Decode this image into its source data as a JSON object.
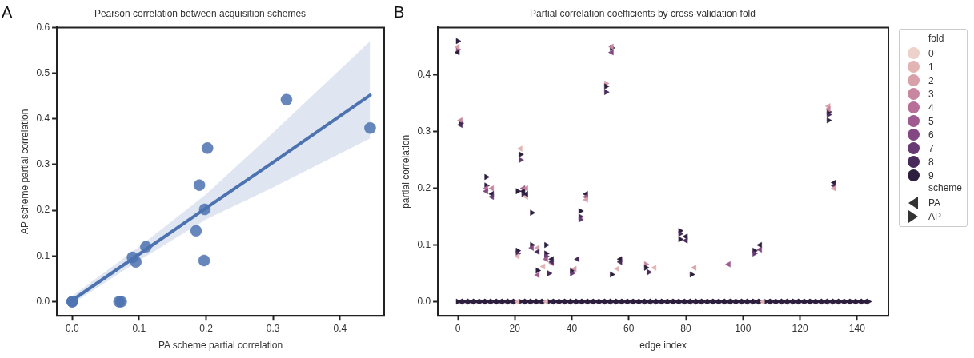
{
  "chart_data": [
    {
      "type": "scatter",
      "title": "Pearson correlation between acquisition schemes",
      "xlabel": "PA scheme partial correlation",
      "ylabel": "AP scheme partial correlation",
      "annotations": [
        "A"
      ],
      "grid": false,
      "legend": false,
      "xlim": [
        -0.023,
        0.466
      ],
      "ylim": [
        -0.031,
        0.6
      ],
      "xticks": [
        {
          "value": 0,
          "label": "0.0"
        },
        0.1,
        0.2,
        0.3,
        0.4
      ],
      "yticks": [
        {
          "value": 0,
          "label": "0.0"
        },
        0.1,
        0.2,
        0.3,
        0.4,
        0.5,
        0.6
      ],
      "series": [
        {
          "marker": "circle",
          "color": "#4c72b0",
          "x": [
            0,
            0,
            0.07,
            0.073,
            0.09,
            0.095,
            0.11,
            0.185,
            0.19,
            0.197,
            0.198,
            0.202,
            0.32,
            0.445
          ],
          "values": [
            0,
            0,
            0,
            0,
            0.097,
            0.087,
            0.12,
            0.155,
            0.255,
            0.09,
            0.202,
            0.336,
            0.442,
            0.38
          ]
        },
        {
          "type": "line",
          "marker": "none",
          "color": "#4c72b0",
          "x": [
            0,
            0.1,
            0.2,
            0.3,
            0.445
          ],
          "values": [
            0.003,
            0.104,
            0.205,
            0.305,
            0.452
          ],
          "lower": [
            -0.005,
            0.09,
            0.18,
            0.25,
            0.357
          ],
          "upper": [
            0.012,
            0.12,
            0.235,
            0.37,
            0.57
          ]
        }
      ]
    },
    {
      "type": "scatter",
      "title": "Partial correlation coefficients by cross-validation fold",
      "xlabel": "edge index",
      "ylabel": "partial correlation",
      "legend_title": "fold",
      "annotations": [
        "B",
        "scheme"
      ],
      "grid": false,
      "legend": "right",
      "marker": "triangle",
      "xlim": [
        -7,
        151
      ],
      "ylim": [
        -0.025,
        0.484
      ],
      "xticks": [
        0,
        20,
        40,
        60,
        80,
        100,
        120,
        140
      ],
      "yticks": [
        {
          "value": 0,
          "label": "0.0"
        },
        0.1,
        0.2,
        0.3,
        0.4
      ],
      "series": [
        {
          "name": "0",
          "color": "#edd1cb",
          "marker": "circle"
        },
        {
          "name": "1",
          "color": "#e3b4b4",
          "marker": "circle"
        },
        {
          "name": "2",
          "color": "#d8a0a8",
          "marker": "circle"
        },
        {
          "name": "3",
          "color": "#c9869f",
          "marker": "circle"
        },
        {
          "name": "4",
          "color": "#b76f98",
          "marker": "circle"
        },
        {
          "name": "5",
          "color": "#9f5a8f",
          "marker": "circle"
        },
        {
          "name": "6",
          "color": "#834883",
          "marker": "circle"
        },
        {
          "name": "7",
          "color": "#673a73",
          "marker": "circle"
        },
        {
          "name": "8",
          "color": "#492b5b",
          "marker": "circle"
        },
        {
          "name": "9",
          "color": "#2d1e3e",
          "marker": "circle"
        },
        {
          "name": "PA",
          "color": "#333333",
          "x": [
            0,
            0,
            1,
            1,
            10,
            10,
            12,
            12,
            12,
            21,
            22,
            23,
            23,
            24,
            24,
            24,
            26,
            28,
            28,
            28,
            30,
            31,
            33,
            33,
            33,
            41,
            42,
            45,
            45,
            45,
            54,
            54,
            56,
            57,
            57,
            69,
            80,
            80,
            83,
            95,
            106,
            106,
            130,
            130,
            132,
            132,
            132,
            1,
            3,
            5,
            7,
            9,
            11,
            13,
            15,
            17,
            19,
            21,
            23,
            25,
            27,
            29,
            31,
            33,
            35,
            37,
            39,
            41,
            43,
            45,
            47,
            49,
            51,
            53,
            55,
            57,
            59,
            61,
            63,
            65,
            67,
            69,
            71,
            73,
            75,
            77,
            79,
            81,
            83,
            85,
            87,
            89,
            91,
            93,
            95,
            97,
            99,
            101,
            103,
            105,
            107,
            109,
            111,
            113,
            115,
            117,
            119,
            121,
            123,
            125,
            127,
            129,
            131,
            133,
            135,
            137,
            139,
            141,
            143
          ],
          "values": [
            0.45,
            0.44,
            0.32,
            0.312,
            0.2,
            0.195,
            0.2,
            0.19,
            0.185,
            0.08,
            0.27,
            0.2,
            0.195,
            0.2,
            0.185,
            0.19,
            0.095,
            0.095,
            0.088,
            0.047,
            0.062,
            0.075,
            0.075,
            0.068,
            0.07,
            0.058,
            0.075,
            0.19,
            0.185,
            0.18,
            0.45,
            0.44,
            0.058,
            0.075,
            0.07,
            0.06,
            0.115,
            0.108,
            0.06,
            0.066,
            0.1,
            0.092,
            0.345,
            0.34,
            0.21,
            0.205,
            0.2,
            0,
            0,
            0,
            0,
            0,
            0,
            0,
            0,
            0,
            0,
            0,
            0,
            0,
            0,
            0,
            0,
            0,
            0,
            0,
            0,
            0,
            0,
            0,
            0,
            0,
            0,
            0,
            0,
            0,
            0,
            0,
            0,
            0,
            0,
            0,
            0,
            0,
            0,
            0,
            0,
            0,
            0,
            0,
            0,
            0,
            0,
            0,
            0,
            0,
            0,
            0,
            0,
            0,
            0,
            0,
            0,
            0,
            0,
            0,
            0,
            0,
            0,
            0,
            0,
            0,
            0,
            0,
            0,
            0,
            0,
            0,
            0
          ],
          "colors": [
            "#d8a0a8",
            "#2d1e3e",
            "#c9869f",
            "#492b5b",
            "#b76f98",
            "#834883",
            "#c9869f",
            "#2d1e3e",
            "#673a73",
            "#e3b4b4",
            "#e3b4b4",
            "#9f5a8f",
            "#2d1e3e",
            "#c9869f",
            "#e3b4b4",
            "#2d1e3e",
            "#834883",
            "#d8a0a8",
            "#492b5b",
            "#9f5a8f",
            "#e3b4b4",
            "#9f5a8f",
            "#2d1e3e",
            "#c9869f",
            "#492b5b",
            "#d8a0a8",
            "#492b5b",
            "#2d1e3e",
            "#9f5a8f",
            "#d8a0a8",
            "#c9869f",
            "#834883",
            "#e3b4b4",
            "#2d1e3e",
            "#492b5b",
            "#e3b4b4",
            "#2d1e3e",
            "#492b5b",
            "#d8a0a8",
            "#9f5a8f",
            "#2d1e3e",
            "#834883",
            "#d8a0a8",
            "#c9869f",
            "#2d1e3e",
            "#492b5b",
            "#d8a0a8",
            "#2d1e3e",
            "#2d1e3e",
            "#2d1e3e",
            "#2d1e3e",
            "#2d1e3e",
            "#2d1e3e",
            "#2d1e3e",
            "#2d1e3e",
            "#2d1e3e",
            "#2d1e3e",
            "#e3b4b4",
            "#2d1e3e",
            "#2d1e3e",
            "#2d1e3e",
            "#2d1e3e",
            "#e3b4b4",
            "#2d1e3e",
            "#2d1e3e",
            "#2d1e3e",
            "#2d1e3e",
            "#2d1e3e",
            "#2d1e3e",
            "#2d1e3e",
            "#2d1e3e",
            "#2d1e3e",
            "#2d1e3e",
            "#2d1e3e",
            "#2d1e3e",
            "#2d1e3e",
            "#2d1e3e",
            "#2d1e3e",
            "#2d1e3e",
            "#2d1e3e",
            "#2d1e3e",
            "#2d1e3e",
            "#2d1e3e",
            "#2d1e3e",
            "#2d1e3e",
            "#2d1e3e",
            "#2d1e3e",
            "#2d1e3e",
            "#2d1e3e",
            "#2d1e3e",
            "#2d1e3e",
            "#2d1e3e",
            "#2d1e3e",
            "#2d1e3e",
            "#2d1e3e",
            "#2d1e3e",
            "#2d1e3e",
            "#2d1e3e",
            "#2d1e3e",
            "#2d1e3e",
            "#e3b4b4",
            "#2d1e3e",
            "#2d1e3e",
            "#2d1e3e",
            "#2d1e3e",
            "#2d1e3e",
            "#2d1e3e",
            "#2d1e3e",
            "#2d1e3e",
            "#2d1e3e",
            "#2d1e3e",
            "#2d1e3e",
            "#2d1e3e",
            "#2d1e3e",
            "#2d1e3e",
            "#2d1e3e",
            "#2d1e3e",
            "#2d1e3e",
            "#2d1e3e"
          ]
        },
        {
          "name": "AP",
          "color": "#333333",
          "x": [
            0,
            0,
            1,
            10,
            10,
            21,
            21,
            21,
            22,
            22,
            23,
            26,
            26,
            28,
            31,
            31,
            31,
            32,
            40,
            40,
            43,
            43,
            43,
            52,
            52,
            52,
            54,
            54,
            66,
            66,
            67,
            78,
            78,
            78,
            82,
            104,
            104,
            130,
            130,
            130,
            0,
            2,
            4,
            6,
            8,
            10,
            12,
            14,
            16,
            18,
            20,
            22,
            24,
            26,
            28,
            30,
            32,
            34,
            36,
            38,
            40,
            42,
            44,
            46,
            48,
            50,
            52,
            54,
            56,
            58,
            60,
            62,
            64,
            66,
            68,
            70,
            72,
            74,
            76,
            78,
            80,
            82,
            84,
            86,
            88,
            90,
            92,
            94,
            96,
            98,
            100,
            102,
            104,
            106,
            108,
            110,
            112,
            114,
            116,
            118,
            120,
            122,
            124,
            126,
            128,
            130,
            132,
            134,
            136,
            138,
            140,
            142,
            144
          ],
          "values": [
            0.46,
            0.445,
            0.315,
            0.22,
            0.205,
            0.09,
            0.085,
            0.195,
            0.26,
            0.25,
            0.19,
            0.157,
            0.1,
            0.055,
            0.1,
            0.085,
            0.08,
            0.05,
            0.055,
            0.05,
            0.16,
            0.15,
            0.145,
            0.385,
            0.38,
            0.37,
            0.448,
            0.048,
            0.066,
            0.06,
            0.052,
            0.125,
            0.12,
            0.11,
            0.048,
            0.09,
            0.085,
            0.335,
            0.33,
            0.32,
            0,
            0,
            0,
            0,
            0,
            0,
            0,
            0,
            0,
            0,
            0,
            0,
            0,
            0,
            0,
            0,
            0,
            0,
            0,
            0,
            0,
            0,
            0,
            0,
            0,
            0,
            0,
            0,
            0,
            0,
            0,
            0,
            0,
            0,
            0,
            0,
            0,
            0,
            0,
            0,
            0,
            0,
            0,
            0,
            0,
            0,
            0,
            0,
            0,
            0,
            0,
            0,
            0,
            0,
            0,
            0,
            0,
            0,
            0,
            0,
            0,
            0,
            0,
            0,
            0,
            0,
            0,
            0,
            0,
            0,
            0,
            0,
            0
          ],
          "colors": [
            "#2d1e3e",
            "#9f5a8f",
            "#2d1e3e",
            "#2d1e3e",
            "#2d1e3e",
            "#2d1e3e",
            "#492b5b",
            "#2d1e3e",
            "#2d1e3e",
            "#673a73",
            "#492b5b",
            "#2d1e3e",
            "#2d1e3e",
            "#2d1e3e",
            "#2d1e3e",
            "#2d1e3e",
            "#673a73",
            "#492b5b",
            "#2d1e3e",
            "#673a73",
            "#2d1e3e",
            "#492b5b",
            "#673a73",
            "#d8a0a8",
            "#2d1e3e",
            "#492b5b",
            "#2d1e3e",
            "#2d1e3e",
            "#c9869f",
            "#2d1e3e",
            "#492b5b",
            "#2d1e3e",
            "#492b5b",
            "#2d1e3e",
            "#2d1e3e",
            "#2d1e3e",
            "#673a73",
            "#2d1e3e",
            "#492b5b",
            "#2d1e3e",
            "#2d1e3e",
            "#2d1e3e",
            "#2d1e3e",
            "#2d1e3e",
            "#2d1e3e",
            "#2d1e3e",
            "#2d1e3e",
            "#2d1e3e",
            "#2d1e3e",
            "#2d1e3e",
            "#2d1e3e",
            "#2d1e3e",
            "#2d1e3e",
            "#2d1e3e",
            "#2d1e3e",
            "#2d1e3e",
            "#2d1e3e",
            "#2d1e3e",
            "#2d1e3e",
            "#2d1e3e",
            "#2d1e3e",
            "#2d1e3e",
            "#2d1e3e",
            "#2d1e3e",
            "#2d1e3e",
            "#2d1e3e",
            "#2d1e3e",
            "#2d1e3e",
            "#2d1e3e",
            "#2d1e3e",
            "#2d1e3e",
            "#2d1e3e",
            "#2d1e3e",
            "#2d1e3e",
            "#2d1e3e",
            "#2d1e3e",
            "#2d1e3e",
            "#2d1e3e",
            "#2d1e3e",
            "#2d1e3e",
            "#2d1e3e",
            "#2d1e3e",
            "#2d1e3e",
            "#2d1e3e",
            "#2d1e3e",
            "#2d1e3e",
            "#2d1e3e",
            "#2d1e3e",
            "#2d1e3e",
            "#2d1e3e",
            "#2d1e3e",
            "#2d1e3e",
            "#2d1e3e",
            "#2d1e3e",
            "#2d1e3e",
            "#2d1e3e",
            "#2d1e3e",
            "#2d1e3e",
            "#2d1e3e",
            "#2d1e3e",
            "#2d1e3e",
            "#2d1e3e",
            "#2d1e3e",
            "#2d1e3e",
            "#2d1e3e",
            "#2d1e3e",
            "#2d1e3e",
            "#2d1e3e",
            "#2d1e3e",
            "#2d1e3e",
            "#2d1e3e",
            "#2d1e3e",
            "#2d1e3e"
          ]
        }
      ]
    }
  ]
}
